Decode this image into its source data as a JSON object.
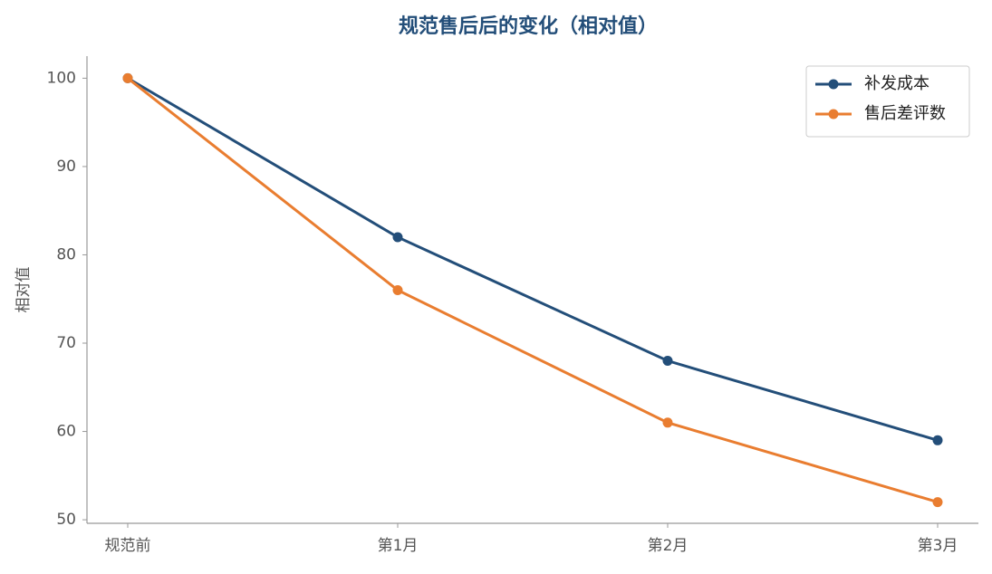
{
  "chart_data": {
    "type": "line",
    "title": "规范售后后的变化（相对值）",
    "y_label": "相对值",
    "categories": [
      "规范前",
      "第1月",
      "第2月",
      "第3月"
    ],
    "series": [
      {
        "name": "补发成本",
        "color": "#234e79",
        "values": [
          100,
          82,
          68,
          59
        ]
      },
      {
        "name": "售后差评数",
        "color": "#e97d30",
        "values": [
          100,
          76,
          61,
          52
        ]
      }
    ],
    "ylim": [
      49.6,
      102.5
    ],
    "yticks": [
      50,
      60,
      70,
      80,
      90,
      100
    ],
    "legend": "upper right",
    "grid": false
  }
}
